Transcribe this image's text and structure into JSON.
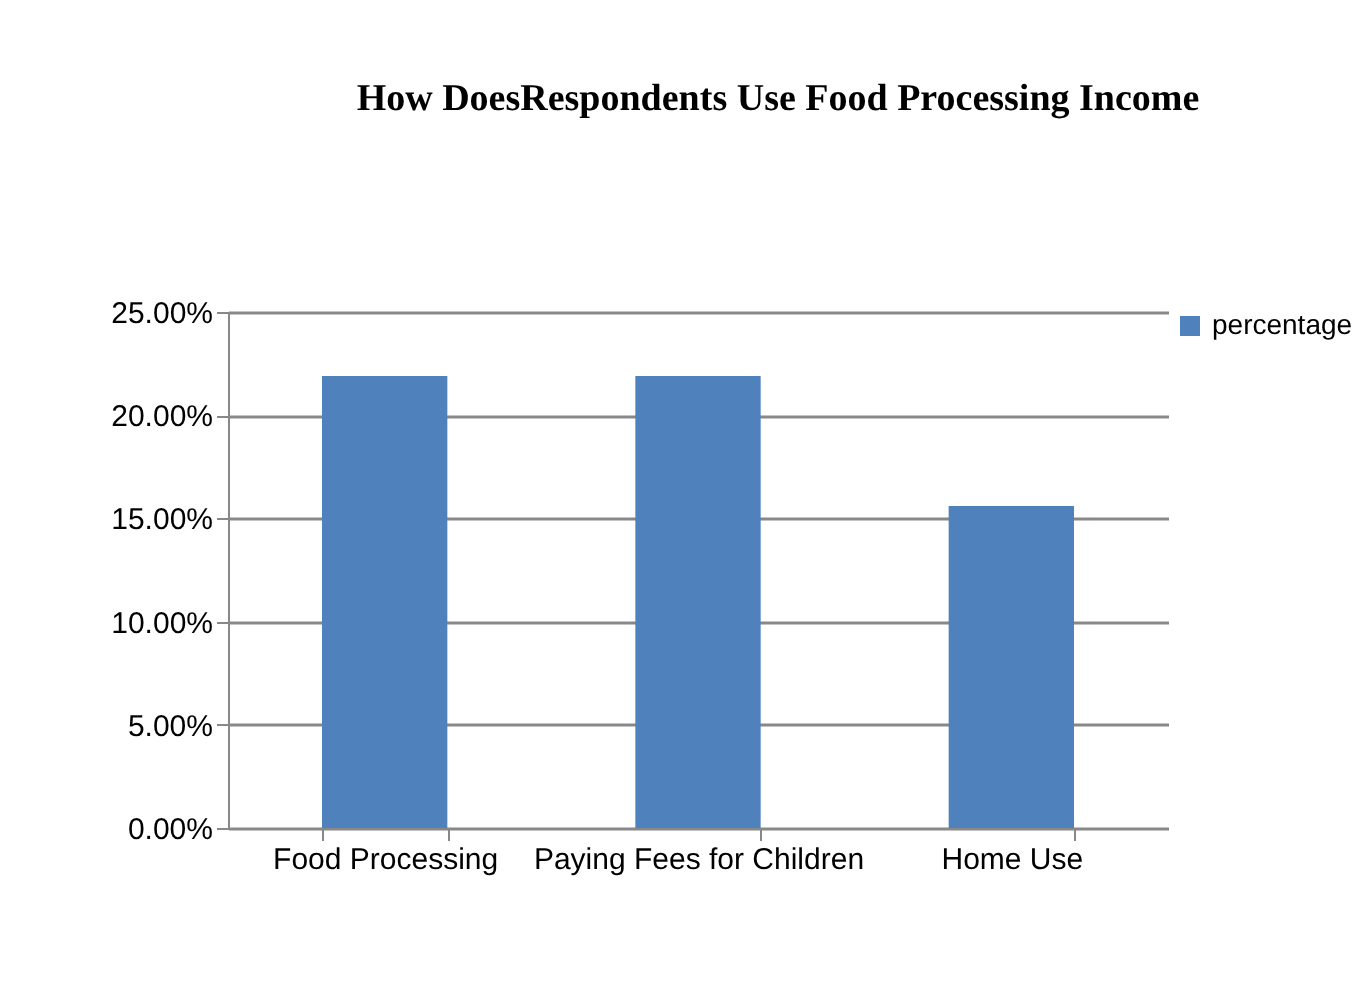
{
  "chart_data": {
    "type": "bar",
    "title": "How DoesRespondents Use Food Processing Income",
    "categories": [
      "Food Processing",
      "Paying Fees for Children",
      "Home Use"
    ],
    "series": [
      {
        "name": "percentage",
        "color": "#4f81bd",
        "values": [
          21.9,
          21.9,
          15.6
        ]
      }
    ],
    "ylim": [
      0,
      25
    ],
    "yticks": [
      {
        "value": 0,
        "label": "0.00%"
      },
      {
        "value": 5,
        "label": "5.00%"
      },
      {
        "value": 10,
        "label": "10.00%"
      },
      {
        "value": 15,
        "label": "15.00%"
      },
      {
        "value": 20,
        "label": "20.00%"
      },
      {
        "value": 25,
        "label": "25.00%"
      }
    ],
    "grid": "y",
    "legend": "right"
  }
}
